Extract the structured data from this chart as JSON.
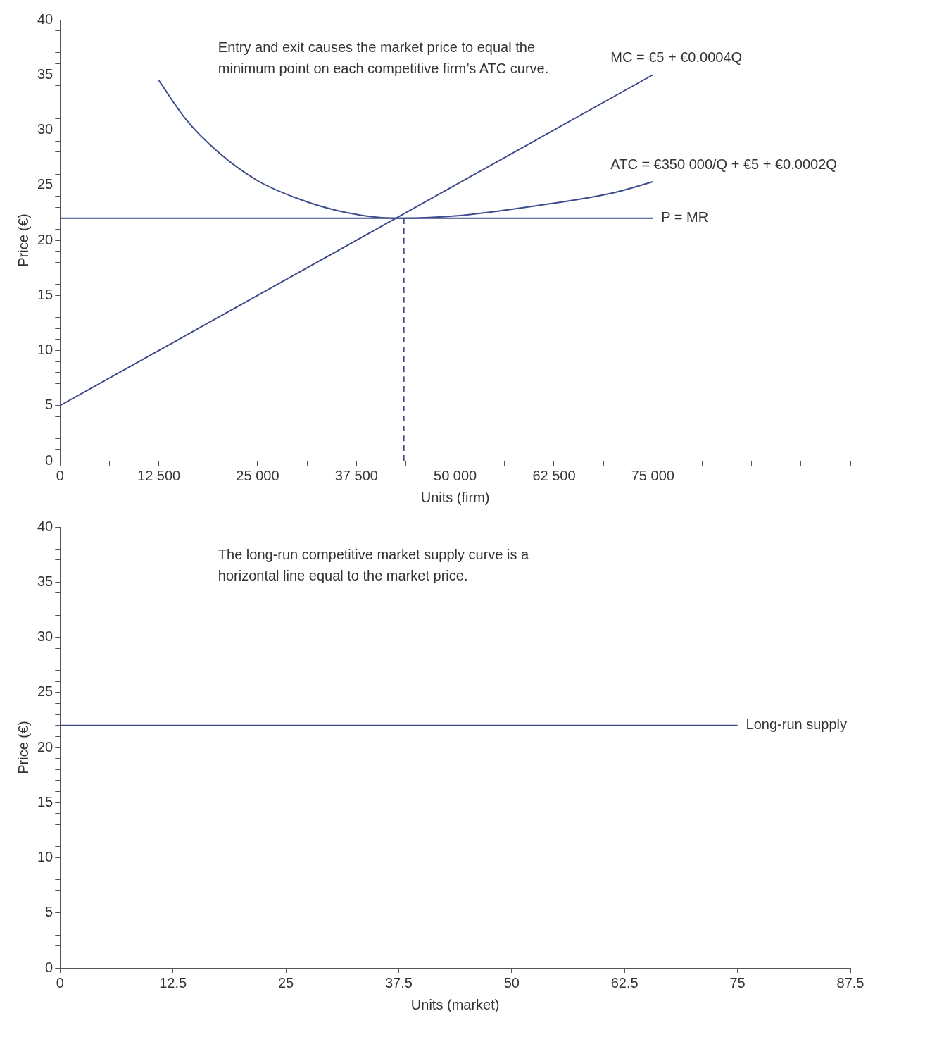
{
  "chart_data": [
    {
      "type": "line",
      "xlabel": "Units (firm)",
      "ylabel": "Price (€)",
      "annotations": [
        "Entry and exit causes the market price to equal the minimum point on each competitive firm’s ATC curve."
      ],
      "xlim": [
        0,
        100000
      ],
      "xticks": [
        0,
        {
          "value": 6250,
          "label": null
        },
        {
          "value": 12500,
          "label": "12 500"
        },
        {
          "value": 18750,
          "label": null
        },
        {
          "value": 25000,
          "label": "25 000"
        },
        {
          "value": 31250,
          "label": null
        },
        {
          "value": 37500,
          "label": "37 500"
        },
        {
          "value": 43750,
          "label": null
        },
        {
          "value": 50000,
          "label": "50 000"
        },
        {
          "value": 56250,
          "label": null
        },
        {
          "value": 62500,
          "label": "62 500"
        },
        {
          "value": 68750,
          "label": null
        },
        {
          "value": 75000,
          "label": "75 000"
        },
        {
          "value": 81250,
          "label": null
        },
        {
          "value": 87500,
          "label": null
        },
        {
          "value": 93750,
          "label": null
        },
        {
          "value": 100000,
          "label": null
        }
      ],
      "ylim": [
        0,
        40
      ],
      "yticks": [
        0,
        {
          "value": 1,
          "label": null
        },
        {
          "value": 2,
          "label": null
        },
        {
          "value": 3,
          "label": null
        },
        {
          "value": 4,
          "label": null
        },
        5,
        {
          "value": 6,
          "label": null
        },
        {
          "value": 7,
          "label": null
        },
        {
          "value": 8,
          "label": null
        },
        {
          "value": 9,
          "label": null
        },
        10,
        {
          "value": 11,
          "label": null
        },
        {
          "value": 12,
          "label": null
        },
        {
          "value": 13,
          "label": null
        },
        {
          "value": 14,
          "label": null
        },
        15,
        {
          "value": 16,
          "label": null
        },
        {
          "value": 17,
          "label": null
        },
        {
          "value": 18,
          "label": null
        },
        {
          "value": 19,
          "label": null
        },
        20,
        {
          "value": 21,
          "label": null
        },
        {
          "value": 22,
          "label": null
        },
        {
          "value": 23,
          "label": null
        },
        {
          "value": 24,
          "label": null
        },
        25,
        {
          "value": 26,
          "label": null
        },
        {
          "value": 27,
          "label": null
        },
        {
          "value": 28,
          "label": null
        },
        {
          "value": 29,
          "label": null
        },
        30,
        {
          "value": 31,
          "label": null
        },
        {
          "value": 32,
          "label": null
        },
        {
          "value": 33,
          "label": null
        },
        {
          "value": 34,
          "label": null
        },
        35,
        {
          "value": 36,
          "label": null
        },
        {
          "value": 37,
          "label": null
        },
        {
          "value": 38,
          "label": null
        },
        {
          "value": 39,
          "label": null
        },
        40
      ],
      "marker": "none",
      "legend": false,
      "series": [
        {
          "name": "MC = €5 + €0.0004Q",
          "color": "#3d4b8c",
          "x": [
            0,
            75000
          ],
          "values": [
            5,
            35
          ]
        },
        {
          "name": "ATC = €350 000/Q + €5 + €0.0002Q",
          "color": "#3d4b8c",
          "x": [
            12500,
            16000,
            20000,
            25000,
            30000,
            35000,
            40000,
            43500,
            50000,
            60000,
            70000,
            75000
          ],
          "values": [
            34.5,
            30.9,
            28.0,
            25.4,
            23.8,
            22.7,
            22.1,
            22.0,
            22.2,
            23.1,
            24.3,
            25.3
          ]
        },
        {
          "name": "P = MR",
          "color": "#3d4b8c",
          "x": [
            0,
            75000
          ],
          "values": [
            22,
            22
          ]
        },
        {
          "color": "#3d4b8c",
          "x": [
            43500,
            43500
          ],
          "values": [
            0,
            22
          ],
          "line_style": "dashed"
        }
      ]
    },
    {
      "type": "line",
      "xlabel": "Units (market)",
      "ylabel": "Price (€)",
      "annotations": [
        "The long-run competitive market supply curve is a horizontal line equal to the market price."
      ],
      "xlim": [
        0,
        87.5
      ],
      "xticks": [
        0,
        12.5,
        25,
        37.5,
        50,
        62.5,
        75,
        87.5
      ],
      "ylim": [
        0,
        40
      ],
      "yticks": [
        0,
        {
          "value": 1,
          "label": null
        },
        {
          "value": 2,
          "label": null
        },
        {
          "value": 3,
          "label": null
        },
        {
          "value": 4,
          "label": null
        },
        5,
        {
          "value": 6,
          "label": null
        },
        {
          "value": 7,
          "label": null
        },
        {
          "value": 8,
          "label": null
        },
        {
          "value": 9,
          "label": null
        },
        10,
        {
          "value": 11,
          "label": null
        },
        {
          "value": 12,
          "label": null
        },
        {
          "value": 13,
          "label": null
        },
        {
          "value": 14,
          "label": null
        },
        15,
        {
          "value": 16,
          "label": null
        },
        {
          "value": 17,
          "label": null
        },
        {
          "value": 18,
          "label": null
        },
        {
          "value": 19,
          "label": null
        },
        20,
        {
          "value": 21,
          "label": null
        },
        {
          "value": 22,
          "label": null
        },
        {
          "value": 23,
          "label": null
        },
        {
          "value": 24,
          "label": null
        },
        25,
        {
          "value": 26,
          "label": null
        },
        {
          "value": 27,
          "label": null
        },
        {
          "value": 28,
          "label": null
        },
        {
          "value": 29,
          "label": null
        },
        30,
        {
          "value": 31,
          "label": null
        },
        {
          "value": 32,
          "label": null
        },
        {
          "value": 33,
          "label": null
        },
        {
          "value": 34,
          "label": null
        },
        35,
        {
          "value": 36,
          "label": null
        },
        {
          "value": 37,
          "label": null
        },
        {
          "value": 38,
          "label": null
        },
        {
          "value": 39,
          "label": null
        },
        40
      ],
      "marker": "none",
      "legend": false,
      "series": [
        {
          "name": "Long-run supply",
          "color": "#3d4b8c",
          "x": [
            0,
            75
          ],
          "values": [
            22,
            22
          ]
        }
      ]
    }
  ]
}
